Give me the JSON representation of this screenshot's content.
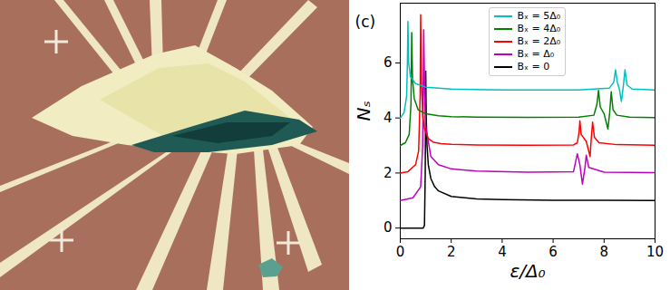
{
  "chart_data": {
    "type": "line",
    "title": "(c)",
    "x_label": "ε/Δ₀",
    "y_label": "Nₛ",
    "xlim": [
      0,
      10
    ],
    "xticks": [
      0,
      2,
      4,
      6,
      8,
      10
    ],
    "ylim": [
      -0.39,
      8.17
    ],
    "yticks": [
      0,
      2,
      4,
      6
    ],
    "legend": "top",
    "series": [
      {
        "name": "Bₓ = 5Δ₀",
        "color": "#00bfbf",
        "x": [
          0,
          0.15,
          0.25,
          0.28,
          0.3,
          0.33,
          0.4,
          0.6,
          1,
          2,
          4,
          7,
          8.2,
          8.38,
          8.45,
          8.52,
          8.6,
          8.68,
          8.76,
          8.82,
          8.9,
          9.1,
          10
        ],
        "values": [
          4.0,
          4.2,
          4.8,
          6.0,
          7.5,
          6.0,
          5.5,
          5.25,
          5.12,
          5.05,
          5.02,
          5.02,
          5.08,
          5.3,
          5.75,
          5.3,
          5.05,
          4.6,
          5.2,
          5.75,
          5.2,
          5.05,
          5.02
        ]
      },
      {
        "name": "Bₓ = 4Δ₀",
        "color": "#008000",
        "x": [
          0,
          0.2,
          0.35,
          0.42,
          0.45,
          0.48,
          0.55,
          0.7,
          1.0,
          1.5,
          2,
          3,
          5,
          7,
          7.6,
          7.72,
          7.78,
          7.85,
          8.0,
          8.15,
          8.22,
          8.28,
          8.35,
          8.5,
          9,
          10
        ],
        "values": [
          3.0,
          3.1,
          3.4,
          4.5,
          7.1,
          5.4,
          4.7,
          4.3,
          4.15,
          4.08,
          4.05,
          4.03,
          4.02,
          4.03,
          4.1,
          4.5,
          5.0,
          4.4,
          4.15,
          3.6,
          4.2,
          4.95,
          4.3,
          4.1,
          4.03,
          4.01
        ]
      },
      {
        "name": "Bₓ = 2Δ₀",
        "color": "#ff0000",
        "x": [
          0,
          0.3,
          0.6,
          0.72,
          0.78,
          0.8,
          0.83,
          0.88,
          0.95,
          1.1,
          1.3,
          1.6,
          2,
          3,
          5,
          6.8,
          6.95,
          7.02,
          7.05,
          7.1,
          7.3,
          7.45,
          7.5,
          7.55,
          7.62,
          7.8,
          8.5,
          10
        ],
        "values": [
          2.0,
          2.05,
          2.3,
          2.8,
          4.8,
          7.75,
          5.3,
          4.1,
          3.6,
          3.25,
          3.12,
          3.07,
          3.04,
          3.02,
          3.01,
          3.02,
          3.1,
          3.5,
          3.9,
          3.4,
          3.15,
          2.6,
          3.3,
          3.85,
          3.3,
          3.1,
          3.03,
          3.01
        ]
      },
      {
        "name": "Bₓ = Δ₀",
        "color": "#bf00bf",
        "x": [
          0,
          0.5,
          0.8,
          0.88,
          0.92,
          0.96,
          1.0,
          1.2,
          1.5,
          2,
          3,
          5,
          6.8,
          6.95,
          7.05,
          7.15,
          7.25,
          7.3,
          7.4,
          8,
          10
        ],
        "values": [
          1.0,
          1.1,
          1.5,
          3.0,
          7.2,
          4.8,
          3.7,
          2.6,
          2.3,
          2.15,
          2.07,
          2.03,
          2.05,
          2.7,
          2.3,
          1.6,
          2.2,
          2.65,
          2.2,
          2.03,
          2.01
        ]
      },
      {
        "name": "Bₓ = 0",
        "color": "#000000",
        "x": [
          0,
          0.5,
          0.9,
          0.95,
          0.98,
          1.0,
          1.02,
          1.05,
          1.1,
          1.2,
          1.35,
          1.5,
          2,
          3,
          4,
          6,
          8,
          10
        ],
        "values": [
          0,
          0,
          0,
          0.1,
          2.0,
          5.7,
          4.0,
          3.0,
          2.3,
          1.8,
          1.5,
          1.35,
          1.15,
          1.06,
          1.03,
          1.01,
          1.01,
          1.0
        ]
      }
    ]
  }
}
